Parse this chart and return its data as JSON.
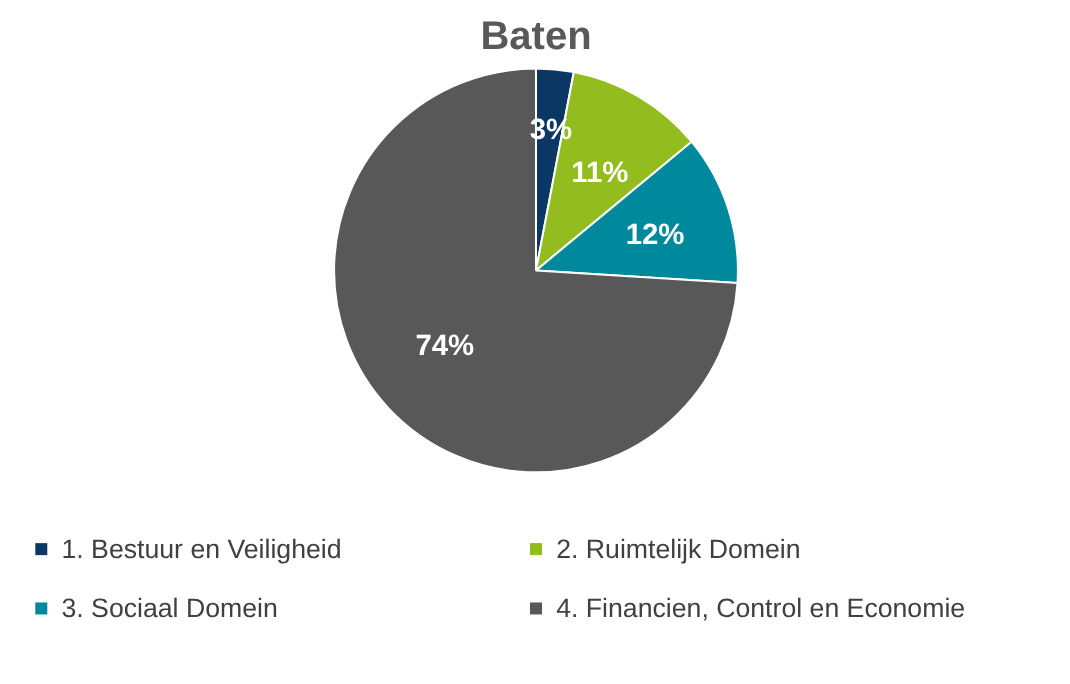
{
  "chart_data": {
    "type": "pie",
    "title": "Baten",
    "categories": [
      "1. Bestuur en Veiligheid",
      "2. Ruimtelijk Domein",
      "3. Sociaal Domein",
      "4. Financien, Control en Economie"
    ],
    "values": [
      3,
      11,
      12,
      74
    ],
    "value_labels": [
      "3%",
      "11%",
      "12%",
      "74%"
    ],
    "colors": [
      "#0b3765",
      "#93bc1f",
      "#00899c",
      "#585858"
    ],
    "legend": "bottom"
  }
}
